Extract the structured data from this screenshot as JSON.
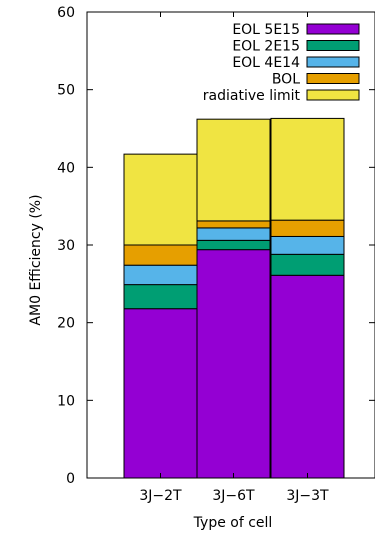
{
  "chart_data": {
    "type": "bar",
    "stacked": true,
    "categories": [
      "3J−2T",
      "3J−6T",
      "3J−3T"
    ],
    "xlabel": "Type of cell",
    "ylabel": "AM0 Efficiency (%)",
    "ylim": [
      0,
      60
    ],
    "yticks": [
      0,
      10,
      20,
      30,
      40,
      50,
      60
    ],
    "grid": false,
    "legend_position": "top-right",
    "series": [
      {
        "name": "EOL 5E15",
        "color": "#9400d3",
        "values": [
          21.8,
          29.4,
          26.1
        ]
      },
      {
        "name": "EOL 2E15",
        "color": "#009e73",
        "values": [
          3.1,
          1.2,
          2.7
        ]
      },
      {
        "name": "EOL 4E14",
        "color": "#56b4e9",
        "values": [
          2.5,
          1.6,
          2.3
        ]
      },
      {
        "name": "BOL",
        "color": "#e69f00",
        "values": [
          2.6,
          0.9,
          2.1
        ]
      },
      {
        "name": "radiative limit",
        "color": "#f0e442",
        "values": [
          11.7,
          13.1,
          13.1
        ]
      }
    ],
    "legend_order": [
      "EOL 5E15",
      "EOL 2E15",
      "EOL 4E14",
      "BOL",
      "radiative limit"
    ]
  }
}
